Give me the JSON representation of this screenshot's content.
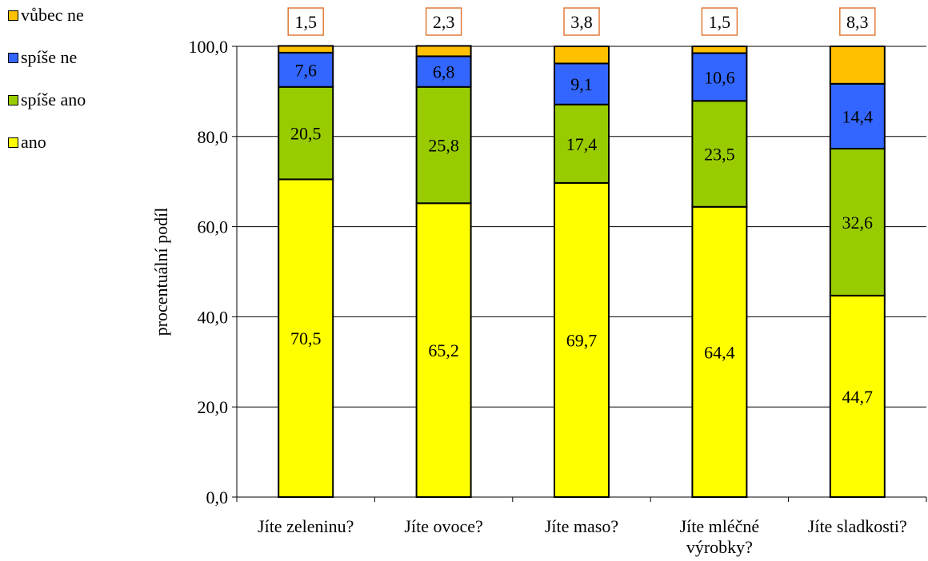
{
  "chart_data": {
    "type": "bar",
    "stacked": true,
    "categories": [
      "Jíte zeleninu?",
      "Jíte ovoce?",
      "Jíte maso?",
      "Jíte mléčné výrobky?",
      "Jíte sladkosti?"
    ],
    "category_lines": [
      [
        "Jíte zeleninu?"
      ],
      [
        "Jíte ovoce?"
      ],
      [
        "Jíte maso?"
      ],
      [
        "Jíte mléčné",
        "výrobky?"
      ],
      [
        "Jíte sladkosti?"
      ]
    ],
    "series": [
      {
        "name": "ano",
        "color": "#ffff00",
        "values": [
          70.5,
          65.2,
          69.7,
          64.4,
          44.7
        ],
        "labels": [
          "70,5",
          "65,2",
          "69,7",
          "64,4",
          "44,7"
        ]
      },
      {
        "name": "spíše ano",
        "color": "#99cc00",
        "values": [
          20.5,
          25.8,
          17.4,
          23.5,
          32.6
        ],
        "labels": [
          "20,5",
          "25,8",
          "17,4",
          "23,5",
          "32,6"
        ]
      },
      {
        "name": "spíše ne",
        "color": "#3366ff",
        "values": [
          7.6,
          6.8,
          9.1,
          10.6,
          14.4
        ],
        "labels": [
          "7,6",
          "6,8",
          "9,1",
          "10,6",
          "14,4"
        ]
      },
      {
        "name": "vůbec ne",
        "color": "#ffc000",
        "values": [
          1.5,
          2.3,
          3.8,
          1.5,
          8.3
        ],
        "labels": [
          "1,5",
          "2,3",
          "3,8",
          "1,5",
          "8,3"
        ]
      }
    ],
    "legend_order": [
      "vůbec ne",
      "spíše ne",
      "spíše ano",
      "ano"
    ],
    "legend_position": "top-left",
    "ylabel": "procentuální podíl",
    "xlabel": "",
    "ylim": [
      0,
      100
    ],
    "yticks": [
      0,
      20,
      40,
      60,
      80,
      100
    ],
    "ytick_labels": [
      "0,0",
      "20,0",
      "40,0",
      "60,0",
      "80,0",
      "100,0"
    ],
    "grid": true,
    "top_label_box_color": "#e07b39"
  }
}
